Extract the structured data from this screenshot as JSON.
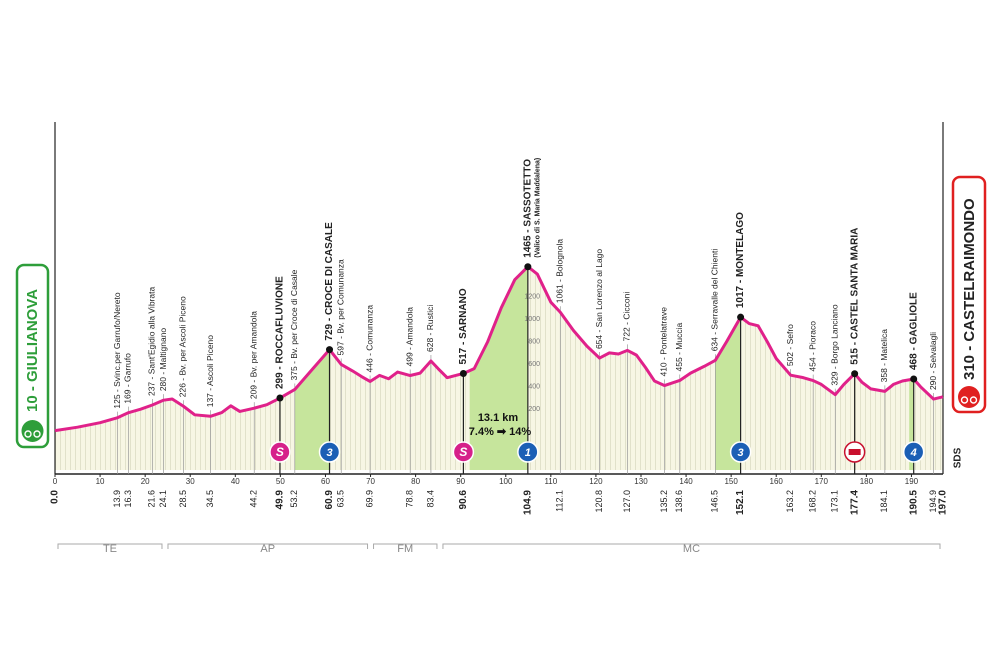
{
  "chart_data": {
    "type": "area",
    "x": [
      0,
      5,
      10,
      13.9,
      16.3,
      19,
      21.6,
      24.1,
      26,
      28.5,
      31,
      34.5,
      37,
      39,
      41,
      44.2,
      47,
      49.9,
      53.2,
      57,
      60.9,
      63.5,
      66,
      68,
      69.9,
      72,
      74,
      76,
      78.8,
      81,
      83.4,
      85,
      87,
      90.6,
      93,
      96,
      99,
      102,
      104.9,
      107,
      110,
      112.1,
      115,
      118,
      120.8,
      123,
      125,
      127,
      129,
      131,
      133,
      135.2,
      138.6,
      141,
      144,
      146.5,
      149,
      152.1,
      154,
      156,
      158,
      160,
      163.2,
      166,
      168.2,
      170,
      173.1,
      175,
      177.4,
      179,
      181,
      184.1,
      186,
      188,
      190.5,
      192,
      194.9,
      197
    ],
    "values": [
      10,
      40,
      80,
      125,
      169,
      200,
      237,
      280,
      290,
      226,
      150,
      137,
      170,
      230,
      180,
      209,
      240,
      299,
      375,
      550,
      729,
      597,
      540,
      490,
      446,
      500,
      470,
      530,
      499,
      520,
      628,
      560,
      480,
      517,
      560,
      800,
      1100,
      1350,
      1465,
      1400,
      1150,
      1061,
      900,
      760,
      654,
      700,
      690,
      722,
      680,
      570,
      450,
      410,
      455,
      520,
      580,
      634,
      800,
      1017,
      960,
      940,
      800,
      650,
      502,
      480,
      454,
      420,
      329,
      420,
      515,
      440,
      380,
      358,
      420,
      450,
      468,
      400,
      290,
      310
    ],
    "color": "#e0218a",
    "xlim": [
      0,
      197
    ],
    "xticks": [
      0,
      10,
      20,
      30,
      40,
      50,
      60,
      70,
      80,
      90,
      100,
      110,
      120,
      130,
      140,
      150,
      160,
      170,
      180,
      190
    ],
    "ylim": [
      -340,
      2750
    ],
    "yticks": [
      200,
      400,
      600,
      800,
      1000,
      1200
    ],
    "start": {
      "label": "10 - GIULIANOVA",
      "km": {
        "value": 0,
        "label": "0.0"
      }
    },
    "finish": {
      "label": "310 - CASTELRAIMONDO",
      "km": {
        "value": 197,
        "label": "197.0"
      }
    },
    "waypoints": [
      {
        "km": 13.9,
        "label": "125 - Svinc.per Garrufo/Nereto",
        "bold": false
      },
      {
        "km": 16.3,
        "label": "169 - Garrufo",
        "bold": false
      },
      {
        "km": 21.6,
        "label": "237 - Sant'Egidio alla Vibrata",
        "bold": false
      },
      {
        "km": 24.1,
        "label": "280 - Maltignano",
        "bold": false
      },
      {
        "km": 28.5,
        "label": "226 - Bv. per Ascoli Piceno",
        "bold": false
      },
      {
        "km": 34.5,
        "label": "137 - Ascoli Piceno",
        "bold": false
      },
      {
        "km": 44.2,
        "label": "209 - Bv. per Amandola",
        "bold": false
      },
      {
        "km": 49.9,
        "label": "299 - ROCCAFLUVIONE",
        "bold": true
      },
      {
        "km": 53.2,
        "label": "375 - Bv. per Croce di Casale",
        "bold": false
      },
      {
        "km": 60.9,
        "label": "729 - CROCE DI CASALE",
        "bold": true
      },
      {
        "km": 63.5,
        "label": "597 - Bv. per Comunanza",
        "bold": false
      },
      {
        "km": 69.9,
        "label": "446 - Comunanza",
        "bold": false
      },
      {
        "km": 78.8,
        "label": "499 - Amandola",
        "bold": false
      },
      {
        "km": 83.4,
        "label": "628 - Rustici",
        "bold": false
      },
      {
        "km": 90.6,
        "label": "517 - SARNANO",
        "bold": true
      },
      {
        "km": 104.9,
        "label": "1465 - SASSOTETTO",
        "note": "(Valico di S. Maria Maddalena)",
        "bold": true
      },
      {
        "km": 112.1,
        "label": "1061 - Bolognola",
        "bold": false
      },
      {
        "km": 120.8,
        "label": "654 - San Lorenzo al Lago",
        "bold": false
      },
      {
        "km": {
          "value": 127,
          "label": "127.0"
        },
        "label": "722 - Cicconi",
        "bold": false
      },
      {
        "km": 135.2,
        "label": "410 - Pontelatrave",
        "bold": false
      },
      {
        "km": 138.6,
        "label": "455 - Muccia",
        "bold": false
      },
      {
        "km": 146.5,
        "label": "634 - Serravalle del Chienti",
        "bold": false
      },
      {
        "km": 152.1,
        "label": "1017 - MONTELAGO",
        "bold": true
      },
      {
        "km": 163.2,
        "label": "502 - Sefro",
        "bold": false
      },
      {
        "km": 168.2,
        "label": "454 - Pioraco",
        "bold": false
      },
      {
        "km": 173.1,
        "label": "329 - Borgo Lanciano",
        "bold": false
      },
      {
        "km": 177.4,
        "label": "515 - CASTEL SANTA MARIA",
        "bold": true
      },
      {
        "km": 184.1,
        "label": "358 - Matelica",
        "bold": false
      },
      {
        "km": 190.5,
        "label": "468 - GAGLIOLE",
        "bold": true
      },
      {
        "km": 194.9,
        "label": "290 - Selvalagli",
        "bold": false
      }
    ],
    "climbs": [
      {
        "category": "3",
        "start_km": 53.2,
        "km": 60.9
      },
      {
        "category": "1",
        "start_km": 92,
        "km": 104.9
      },
      {
        "category": "3",
        "start_km": 146.5,
        "km": 152.1
      },
      {
        "category": "4",
        "start_km": 189.5,
        "km": 190.5
      }
    ],
    "sprints": [
      {
        "label": "S",
        "km": 49.9
      },
      {
        "label": "S",
        "km": 90.6
      }
    ],
    "bonus_km": 177.4,
    "climb_note": {
      "length": "13.1 km",
      "gradient": "7.4% ➡ 14%"
    },
    "regions": [
      {
        "label": "TE",
        "from_km": 0,
        "to_km": 24.4
      },
      {
        "label": "AP",
        "from_km": 24.4,
        "to_km": 70
      },
      {
        "label": "FM",
        "from_km": 70,
        "to_km": 85.4
      },
      {
        "label": "MC",
        "from_km": 85.4,
        "to_km": 197
      }
    ],
    "brand": "SDS"
  }
}
